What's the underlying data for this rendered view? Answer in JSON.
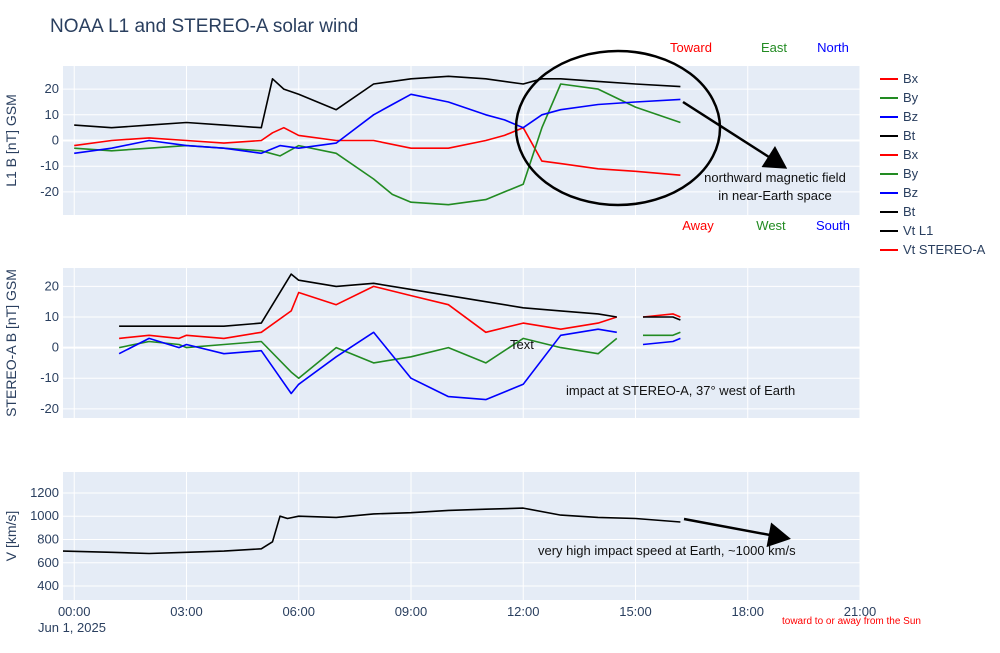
{
  "chart_data": {
    "type": "line",
    "title": "NOAA L1 and STEREO-A solar wind",
    "x_axis": {
      "range_hours": [
        -0.3,
        21.0
      ],
      "ticks": [
        "00:00",
        "03:00",
        "06:00",
        "09:00",
        "12:00",
        "15:00",
        "18:00",
        "21:00"
      ],
      "tick_hours": [
        0,
        3,
        6,
        9,
        12,
        15,
        18,
        21
      ],
      "date_label": "Jun 1, 2025",
      "grid": true
    },
    "panels": [
      {
        "ylabel": "L1 B [nT] GSM",
        "ylim": [
          -29,
          29
        ],
        "yticks": [
          -20,
          -10,
          0,
          10,
          20
        ],
        "series": [
          {
            "name": "Bx",
            "color": "#ff0000",
            "x": [
              0,
              1,
              2,
              3,
              4,
              5,
              5.3,
              5.6,
              6,
              7,
              8,
              9,
              10,
              11,
              11.5,
              12,
              12.5,
              13,
              14,
              15,
              16.2
            ],
            "y": [
              -2,
              0,
              1,
              0,
              -1,
              0,
              3,
              5,
              2,
              0,
              0,
              -3,
              -3,
              0,
              2,
              5,
              -8,
              -9,
              -11,
              -12,
              -13.5
            ]
          },
          {
            "name": "By",
            "color": "#228b22",
            "x": [
              0,
              1,
              2,
              3,
              4,
              5,
              5.5,
              6,
              7,
              8,
              8.5,
              9,
              10,
              11,
              11.5,
              12,
              12.5,
              13,
              14,
              15,
              16.2
            ],
            "y": [
              -3,
              -4,
              -3,
              -2,
              -3,
              -4,
              -6,
              -2,
              -5,
              -15,
              -21,
              -24,
              -25,
              -23,
              -20,
              -17,
              5,
              22,
              20,
              13,
              7
            ]
          },
          {
            "name": "Bz",
            "color": "#0000ff",
            "x": [
              0,
              1,
              2,
              3,
              4,
              5,
              5.5,
              6,
              7,
              8,
              8.5,
              9,
              10,
              11,
              11.5,
              12,
              12.5,
              13,
              14,
              15,
              16.2
            ],
            "y": [
              -5,
              -3,
              0,
              -2,
              -3,
              -5,
              -2,
              -3,
              -1,
              10,
              14,
              18,
              15,
              10,
              8,
              5,
              10,
              12,
              14,
              15,
              16
            ]
          },
          {
            "name": "Bt",
            "color": "#000000",
            "x": [
              0,
              1,
              2,
              3,
              4,
              5,
              5.3,
              5.6,
              6,
              7,
              8,
              8.5,
              9,
              10,
              11,
              12,
              12.5,
              13,
              14,
              15,
              16.2
            ],
            "y": [
              6,
              5,
              6,
              7,
              6,
              5,
              24,
              20,
              18,
              12,
              22,
              23,
              24,
              25,
              24,
              22,
              24,
              24,
              23,
              22,
              21
            ]
          }
        ]
      },
      {
        "ylabel": "STEREO-A B [nT] GSM",
        "ylim": [
          -23,
          26
        ],
        "yticks": [
          -20,
          -10,
          0,
          10,
          20
        ],
        "series": [
          {
            "name": "Bx",
            "color": "#ff0000",
            "x": [
              1.2,
              2,
              2.8,
              3,
              4,
              5,
              5.8,
              6,
              7,
              8,
              9,
              10,
              11,
              12,
              13,
              14,
              14.5
            ],
            "y": [
              3,
              4,
              3,
              4,
              3,
              5,
              12,
              18,
              14,
              20,
              17,
              14,
              5,
              8,
              6,
              8,
              10
            ]
          },
          {
            "name": "By",
            "color": "#228b22",
            "x": [
              1.2,
              2,
              2.8,
              3,
              4,
              5,
              5.8,
              6,
              7,
              8,
              9,
              10,
              11,
              12,
              13,
              14,
              14.5
            ],
            "y": [
              0,
              2,
              1,
              0,
              1,
              2,
              -8,
              -10,
              0,
              -5,
              -3,
              0,
              -5,
              3,
              0,
              -2,
              3
            ]
          },
          {
            "name": "Bz",
            "color": "#0000ff",
            "x": [
              1.2,
              2,
              2.8,
              3,
              4,
              5,
              5.8,
              6,
              7,
              8,
              9,
              10,
              11,
              12,
              13,
              14,
              14.5
            ],
            "y": [
              -2,
              3,
              0,
              1,
              -2,
              -1,
              -15,
              -12,
              -3,
              5,
              -10,
              -16,
              -17,
              -12,
              4,
              6,
              5
            ]
          },
          {
            "name": "Bt",
            "color": "#000000",
            "x": [
              1.2,
              2,
              2.8,
              3,
              4,
              5,
              5.8,
              6,
              7,
              8,
              9,
              10,
              11,
              12,
              13,
              14,
              14.5
            ],
            "y": [
              7,
              7,
              7,
              7,
              7,
              8,
              24,
              22,
              20,
              21,
              19,
              17,
              15,
              13,
              12,
              11,
              10
            ]
          },
          {
            "name": "Bx",
            "color": "#ff0000",
            "x": [
              15.2,
              16,
              16.2
            ],
            "y": [
              10,
              11,
              10
            ]
          },
          {
            "name": "By",
            "color": "#228b22",
            "x": [
              15.2,
              16,
              16.2
            ],
            "y": [
              4,
              4,
              5
            ]
          },
          {
            "name": "Bz",
            "color": "#0000ff",
            "x": [
              15.2,
              16,
              16.2
            ],
            "y": [
              1,
              2,
              3
            ]
          },
          {
            "name": "Bt",
            "color": "#000000",
            "x": [
              15.2,
              16,
              16.2
            ],
            "y": [
              10,
              10,
              9
            ]
          }
        ]
      },
      {
        "ylabel": "V [km/s]",
        "ylim": [
          280,
          1380
        ],
        "yticks": [
          400,
          600,
          800,
          1000,
          1200
        ],
        "series": [
          {
            "name": "Vt L1",
            "color": "#000000",
            "x": [
              -0.3,
              1,
              2,
              3,
              4,
              5,
              5.3,
              5.5,
              5.7,
              6,
              7,
              8,
              9,
              10,
              11,
              12,
              13,
              14,
              15,
              16.2
            ],
            "y": [
              700,
              690,
              680,
              690,
              700,
              720,
              780,
              1000,
              980,
              1000,
              990,
              1020,
              1030,
              1050,
              1060,
              1070,
              1010,
              990,
              980,
              950
            ]
          },
          {
            "name": "Vt STEREO-A",
            "color": "#ff0000",
            "x": [],
            "y": []
          }
        ]
      }
    ],
    "legend": {
      "placement": "right",
      "entries": [
        {
          "label": "Bx",
          "color": "#ff0000"
        },
        {
          "label": "By",
          "color": "#228b22"
        },
        {
          "label": "Bz",
          "color": "#0000ff"
        },
        {
          "label": "Bt",
          "color": "#000000"
        },
        {
          "label": "Bx",
          "color": "#ff0000"
        },
        {
          "label": "By",
          "color": "#228b22"
        },
        {
          "label": "Bz",
          "color": "#0000ff"
        },
        {
          "label": "Bt",
          "color": "#000000"
        },
        {
          "label": "Vt L1",
          "color": "#000000"
        },
        {
          "label": "Vt STEREO-A",
          "color": "#ff0000"
        }
      ]
    },
    "direction_labels": {
      "top": [
        {
          "text": "Toward",
          "color": "#ff0000"
        },
        {
          "text": "East",
          "color": "#228b22"
        },
        {
          "text": "North",
          "color": "#0000ff"
        }
      ],
      "bottom": [
        {
          "text": "Away",
          "color": "#ff0000"
        },
        {
          "text": "West",
          "color": "#228b22"
        },
        {
          "text": "South",
          "color": "#0000ff"
        }
      ]
    },
    "annotations": {
      "northward": [
        "northward magnetic field",
        "in near-Earth space"
      ],
      "stereo_impact": "impact at STEREO-A, 37° west of Earth",
      "speed": "very high impact speed at Earth, ~1000 km/s",
      "stray_text": "Text",
      "footnote": "toward to or away from the Sun"
    }
  }
}
